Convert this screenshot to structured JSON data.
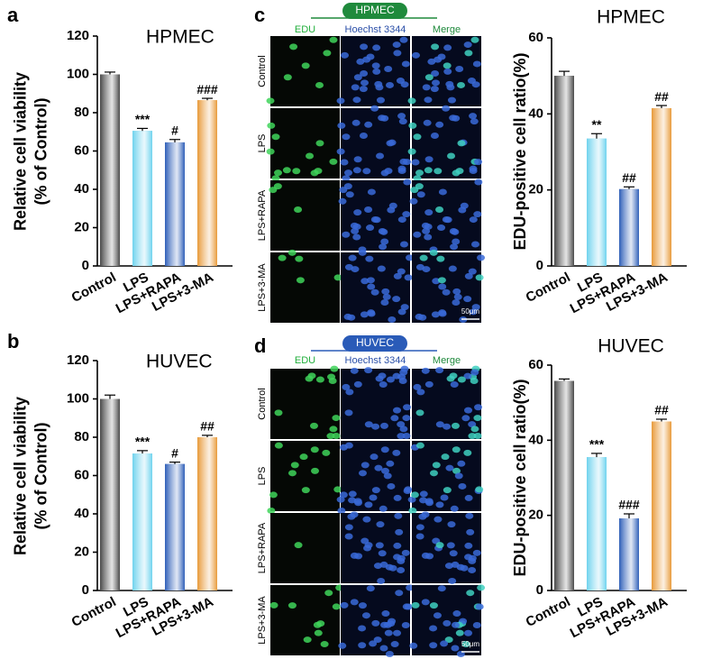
{
  "chart_data": [
    {
      "type": "bar",
      "label": "a",
      "title": "HPMEC",
      "ylabel": [
        "Relative cell viability",
        "(% of Control)"
      ],
      "categories": [
        "Control",
        "LPS",
        "LPS+RAPA",
        "LPS+3-MA"
      ],
      "values": [
        100,
        70.5,
        64.5,
        86.5
      ],
      "errors": [
        1.2,
        1.3,
        1.5,
        1
      ],
      "significance": [
        null,
        "***",
        "#",
        "###"
      ],
      "colors": [
        "#4a4a4a",
        "#6fd3ee",
        "#2f5fb8",
        "#e89a3a"
      ],
      "ylim": [
        0,
        120
      ],
      "yticks": [
        0,
        20,
        40,
        60,
        80,
        100,
        120
      ]
    },
    {
      "type": "bar",
      "label": "b",
      "title": "HUVEC",
      "ylabel": [
        "Relative cell viability",
        "(% of Control)"
      ],
      "categories": [
        "Control",
        "LPS",
        "LPS+RAPA",
        "LPS+3-MA"
      ],
      "values": [
        100,
        71.5,
        66,
        80
      ],
      "errors": [
        2,
        1.5,
        1,
        1
      ],
      "significance": [
        null,
        "***",
        "#",
        "##"
      ],
      "colors": [
        "#4a4a4a",
        "#6fd3ee",
        "#2f5fb8",
        "#e89a3a"
      ],
      "ylim": [
        0,
        120
      ],
      "yticks": [
        0,
        20,
        40,
        60,
        80,
        100,
        120
      ]
    },
    {
      "type": "bar",
      "title": "HPMEC",
      "ylabel": [
        "EDU-positive cell ratio(%)"
      ],
      "categories": [
        "Control",
        "LPS",
        "LPS+RAPA",
        "LPS+3-MA"
      ],
      "values": [
        50,
        33.5,
        20.2,
        41.5
      ],
      "errors": [
        1.2,
        1.3,
        0.6,
        0.7
      ],
      "significance": [
        null,
        "**",
        "##",
        "##"
      ],
      "colors": [
        "#4a4a4a",
        "#6fd3ee",
        "#2f5fb8",
        "#e89a3a"
      ],
      "ylim": [
        0,
        60
      ],
      "yticks": [
        0,
        20,
        40,
        60
      ]
    },
    {
      "type": "bar",
      "title": "HUVEC",
      "ylabel": [
        "EDU-positive cell ratio(%)"
      ],
      "categories": [
        "Control",
        "LPS",
        "LPS+RAPA",
        "LPS+3-MA"
      ],
      "values": [
        55.8,
        35.5,
        19.2,
        45
      ],
      "errors": [
        0.5,
        1,
        1.2,
        0.6
      ],
      "significance": [
        null,
        "***",
        "###",
        "##"
      ],
      "colors": [
        "#4a4a4a",
        "#6fd3ee",
        "#2f5fb8",
        "#e89a3a"
      ],
      "ylim": [
        0,
        60
      ],
      "yticks": [
        0,
        20,
        40,
        60
      ]
    }
  ],
  "micrographs": [
    {
      "label": "c",
      "title": "HPMEC",
      "columns": [
        "EDU",
        "Hoechst 3344",
        "Merge"
      ],
      "rows": [
        "Control",
        "LPS",
        "LPS+RAPA",
        "LPS+3-MA"
      ],
      "scale_bar": "50μm"
    },
    {
      "label": "d",
      "title": "HUVEC",
      "columns": [
        "EDU",
        "Hoechst 3344",
        "Merge"
      ],
      "rows": [
        "Control",
        "LPS",
        "LPS+RAPA",
        "LPS+3-MA"
      ],
      "scale_bar": "50μm"
    }
  ]
}
